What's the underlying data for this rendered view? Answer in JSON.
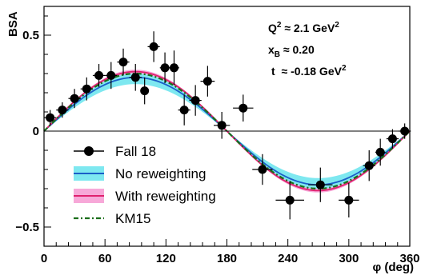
{
  "chart_data": {
    "type": "scatter",
    "xlabel": "φ (deg)",
    "ylabel": "BSA",
    "xlim": [
      0,
      360
    ],
    "ylim": [
      -0.6,
      0.65
    ],
    "x_ticks": [
      0,
      60,
      120,
      180,
      240,
      300,
      360
    ],
    "x_tick_labels": [
      "0",
      "60",
      "120",
      "180",
      "240",
      "300",
      "360"
    ],
    "y_ticks": [
      -0.5,
      0,
      0.5
    ],
    "y_tick_labels": [
      "−0.5",
      "0",
      "0.5"
    ],
    "annotations": {
      "q2": "Q² ≈ 2.1 GeV²",
      "xb": "x_B ≈ 0.20",
      "t": "t ≈ -0.18 GeV²"
    },
    "annotation_parts": {
      "q2_base": "Q",
      "q2_sup": "2",
      "q2_val": " ≈ 2.1 GeV",
      "q2_unit_sup": "2",
      "xb_base": "x",
      "xb_sub": "B",
      "xb_val": " ≈ 0.20",
      "t_base": "t",
      "t_val": " ≈ -0.18 GeV",
      "t_unit_sup": "2"
    },
    "legend": {
      "placement": "bottom-left",
      "entries": [
        "Fall 18",
        "No reweighting",
        "With reweighting",
        "KM15"
      ]
    },
    "series": [
      {
        "name": "Fall 18",
        "style": "markers-with-errors",
        "color": "#000000",
        "points": [
          {
            "x": 6,
            "y": 0.07,
            "ex": 6,
            "ey": 0.04
          },
          {
            "x": 18,
            "y": 0.11,
            "ex": 6,
            "ey": 0.04
          },
          {
            "x": 30,
            "y": 0.17,
            "ex": 6,
            "ey": 0.05
          },
          {
            "x": 42,
            "y": 0.22,
            "ex": 6,
            "ey": 0.06
          },
          {
            "x": 54,
            "y": 0.29,
            "ex": 6,
            "ey": 0.06
          },
          {
            "x": 66,
            "y": 0.29,
            "ex": 6,
            "ey": 0.07
          },
          {
            "x": 78,
            "y": 0.36,
            "ex": 6,
            "ey": 0.07
          },
          {
            "x": 90,
            "y": 0.28,
            "ex": 6,
            "ey": 0.07
          },
          {
            "x": 99,
            "y": 0.21,
            "ex": 4,
            "ey": 0.07
          },
          {
            "x": 108,
            "y": 0.44,
            "ex": 6,
            "ey": 0.08
          },
          {
            "x": 119,
            "y": 0.33,
            "ex": 5,
            "ey": 0.08
          },
          {
            "x": 128,
            "y": 0.33,
            "ex": 5,
            "ey": 0.09
          },
          {
            "x": 138,
            "y": 0.11,
            "ex": 6,
            "ey": 0.08
          },
          {
            "x": 149,
            "y": 0.16,
            "ex": 6,
            "ey": 0.08
          },
          {
            "x": 161,
            "y": 0.26,
            "ex": 7,
            "ey": 0.08
          },
          {
            "x": 175,
            "y": 0.03,
            "ex": 8,
            "ey": 0.07
          },
          {
            "x": 196,
            "y": 0.12,
            "ex": 10,
            "ey": 0.07
          },
          {
            "x": 215,
            "y": -0.2,
            "ex": 10,
            "ey": 0.08
          },
          {
            "x": 242,
            "y": -0.36,
            "ex": 14,
            "ey": 0.1
          },
          {
            "x": 272,
            "y": -0.28,
            "ex": 12,
            "ey": 0.09
          },
          {
            "x": 300,
            "y": -0.36,
            "ex": 10,
            "ey": 0.09
          },
          {
            "x": 320,
            "y": -0.18,
            "ex": 6,
            "ey": 0.08
          },
          {
            "x": 331,
            "y": -0.11,
            "ex": 5,
            "ey": 0.07
          },
          {
            "x": 343,
            "y": -0.04,
            "ex": 6,
            "ey": 0.05
          },
          {
            "x": 355,
            "y": 0.0,
            "ex": 6,
            "ey": 0.04
          }
        ]
      },
      {
        "name": "No reweighting",
        "style": "band",
        "color": "#1a5ec8",
        "band_color": "#7ee8f0",
        "amplitude": 0.28,
        "band_half_width": 0.035
      },
      {
        "name": "With reweighting",
        "style": "band",
        "color": "#e0206e",
        "band_color": "#f7a8d8",
        "amplitude": 0.31,
        "band_half_width": 0.01
      },
      {
        "name": "KM15",
        "style": "dash-dot",
        "color": "#1a6e1a",
        "amplitude": 0.3
      }
    ]
  }
}
